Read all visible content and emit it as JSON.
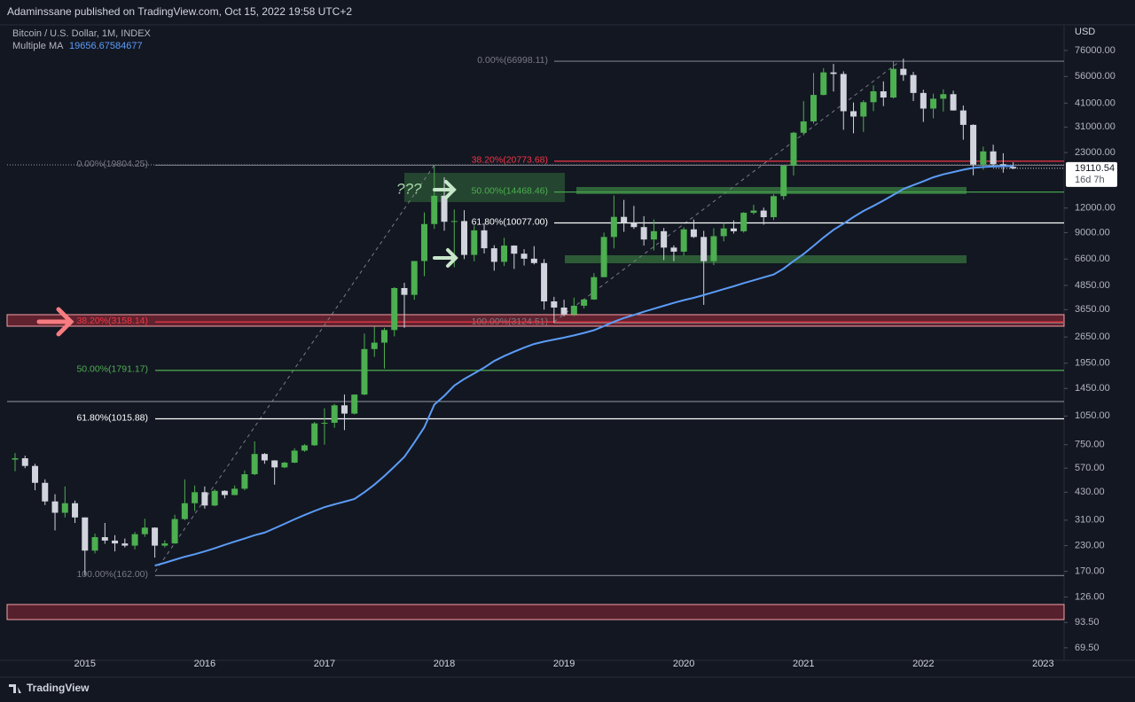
{
  "header": "Adaminssane published on TradingView.com, Oct 15, 2022 19:58 UTC+2",
  "footer": "TradingView",
  "chart_data": {
    "type": "candlestick",
    "title": "Bitcoin / U.S. Dollar, 1M, INDEX",
    "y_unit": "USD",
    "log_scale": true,
    "up_color": "#4caf50",
    "down_color": "#d1d4dc",
    "x": [
      "2014-06",
      "2014-07",
      "2014-08",
      "2014-09",
      "2014-10",
      "2014-11",
      "2014-12",
      "2015-01",
      "2015-02",
      "2015-03",
      "2015-04",
      "2015-05",
      "2015-06",
      "2015-07",
      "2015-08",
      "2015-09",
      "2015-10",
      "2015-11",
      "2015-12",
      "2016-01",
      "2016-02",
      "2016-03",
      "2016-04",
      "2016-05",
      "2016-06",
      "2016-07",
      "2016-08",
      "2016-09",
      "2016-10",
      "2016-11",
      "2016-12",
      "2017-01",
      "2017-02",
      "2017-03",
      "2017-04",
      "2017-05",
      "2017-06",
      "2017-07",
      "2017-08",
      "2017-09",
      "2017-10",
      "2017-11",
      "2017-12",
      "2018-01",
      "2018-02",
      "2018-03",
      "2018-04",
      "2018-05",
      "2018-06",
      "2018-07",
      "2018-08",
      "2018-09",
      "2018-10",
      "2018-11",
      "2018-12",
      "2019-01",
      "2019-02",
      "2019-03",
      "2019-04",
      "2019-05",
      "2019-06",
      "2019-07",
      "2019-08",
      "2019-09",
      "2019-10",
      "2019-11",
      "2019-12",
      "2020-01",
      "2020-02",
      "2020-03",
      "2020-04",
      "2020-05",
      "2020-06",
      "2020-07",
      "2020-08",
      "2020-09",
      "2020-10",
      "2020-11",
      "2020-12",
      "2021-01",
      "2021-02",
      "2021-03",
      "2021-04",
      "2021-05",
      "2021-06",
      "2021-07",
      "2021-08",
      "2021-09",
      "2021-10",
      "2021-11",
      "2021-12",
      "2022-01",
      "2022-02",
      "2022-03",
      "2022-04",
      "2022-05",
      "2022-06",
      "2022-07",
      "2022-08",
      "2022-09",
      "2022-10"
    ],
    "open": [
      630,
      640,
      585,
      480,
      386,
      338,
      378,
      320,
      217,
      254,
      244,
      236,
      230,
      263,
      284,
      230,
      236,
      314,
      378,
      430,
      368,
      437,
      416,
      448,
      531,
      673,
      624,
      575,
      608,
      700,
      745,
      963,
      970,
      1190,
      1080,
      1350,
      2300,
      2480,
      2875,
      4700,
      4340,
      6450,
      9950,
      13860,
      10220,
      10300,
      6930,
      9240,
      7490,
      6390,
      7730,
      7030,
      6630,
      6300,
      4020,
      3740,
      3460,
      3820,
      4110,
      5340,
      8550,
      10820,
      10080,
      9600,
      8300,
      9150,
      7550,
      7200,
      9350,
      8550,
      6440,
      8630,
      9450,
      9140,
      11350,
      11650,
      10780,
      13800,
      19700,
      28990,
      33110,
      45140,
      58800,
      57700,
      37300,
      35040,
      41460,
      47100,
      43800,
      61300,
      57000,
      46200,
      38480,
      43190,
      45540,
      37640,
      31790,
      19950,
      23300,
      20050,
      19430
    ],
    "high": [
      680,
      660,
      600,
      500,
      420,
      460,
      390,
      320,
      265,
      300,
      260,
      250,
      270,
      315,
      285,
      245,
      330,
      500,
      465,
      460,
      445,
      440,
      465,
      555,
      780,
      680,
      625,
      615,
      720,
      755,
      980,
      1150,
      1210,
      1350,
      1350,
      2760,
      3000,
      2950,
      4750,
      5000,
      6450,
      11400,
      19804.25,
      17200,
      11800,
      11700,
      9770,
      9990,
      7760,
      8470,
      7750,
      7410,
      7680,
      6600,
      4240,
      4100,
      4200,
      4150,
      5600,
      9000,
      13900,
      13200,
      12300,
      10900,
      10500,
      9500,
      7750,
      9580,
      10500,
      9190,
      9470,
      10070,
      10380,
      11440,
      12470,
      12070,
      14100,
      19900,
      29300,
      41950,
      58350,
      61800,
      64900,
      59500,
      41300,
      42400,
      50500,
      52900,
      66998.11,
      69000,
      59100,
      47990,
      45800,
      48190,
      47440,
      39900,
      31990,
      24650,
      25200,
      22800,
      20500
    ],
    "low": [
      550,
      570,
      440,
      370,
      275,
      320,
      300,
      162,
      210,
      235,
      215,
      225,
      220,
      255,
      200,
      225,
      235,
      310,
      345,
      355,
      365,
      400,
      415,
      440,
      525,
      600,
      470,
      570,
      605,
      690,
      740,
      750,
      915,
      890,
      1070,
      1340,
      2100,
      1830,
      2670,
      2950,
      4100,
      5400,
      9400,
      9200,
      6000,
      6600,
      6430,
      7050,
      5760,
      6080,
      5880,
      6120,
      6200,
      3650,
      3124.51,
      3380,
      3380,
      3700,
      4090,
      5340,
      7480,
      9080,
      9400,
      7730,
      7300,
      6520,
      6440,
      6870,
      8450,
      3860,
      6150,
      8120,
      8900,
      8990,
      11120,
      9880,
      10420,
      13220,
      17570,
      28130,
      32300,
      44960,
      47000,
      30000,
      28800,
      29280,
      37330,
      39600,
      43300,
      53250,
      42000,
      32900,
      34300,
      37150,
      37600,
      26700,
      17600,
      18780,
      19550,
      18150,
      18900
    ],
    "close": [
      640,
      585,
      480,
      386,
      338,
      378,
      320,
      217,
      254,
      244,
      236,
      230,
      263,
      284,
      230,
      236,
      314,
      378,
      430,
      368,
      437,
      416,
      448,
      531,
      673,
      624,
      575,
      608,
      700,
      745,
      963,
      970,
      1190,
      1080,
      1350,
      2300,
      2480,
      2875,
      4700,
      4340,
      6450,
      9950,
      13860,
      10220,
      10300,
      6930,
      9240,
      7490,
      6390,
      7730,
      7030,
      6630,
      6300,
      4020,
      3740,
      3460,
      3820,
      4110,
      5340,
      8550,
      10820,
      10080,
      9600,
      8300,
      9150,
      7550,
      7200,
      9350,
      8550,
      6440,
      8630,
      9450,
      9140,
      11350,
      11650,
      10780,
      13800,
      19700,
      28990,
      33110,
      45140,
      58800,
      57700,
      37300,
      35040,
      41460,
      47100,
      43800,
      61300,
      57000,
      46200,
      38480,
      43190,
      45540,
      37640,
      31790,
      19950,
      23300,
      20050,
      19430,
      19110.54
    ],
    "series": [
      {
        "name": "Multiple MA",
        "color": "#5b9cf6",
        "values": [
          null,
          null,
          null,
          null,
          null,
          null,
          null,
          null,
          null,
          null,
          null,
          null,
          null,
          null,
          182,
          188,
          195,
          202,
          208,
          215,
          223,
          232,
          241,
          250,
          260,
          268,
          282,
          297,
          313,
          329,
          345,
          361,
          373,
          385,
          397,
          430,
          470,
          520,
          580,
          650,
          770,
          920,
          1200,
          1330,
          1500,
          1620,
          1730,
          1850,
          2000,
          2120,
          2230,
          2340,
          2440,
          2510,
          2570,
          2630,
          2700,
          2780,
          2870,
          3010,
          3170,
          3310,
          3430,
          3560,
          3690,
          3820,
          3950,
          4080,
          4190,
          4330,
          4480,
          4640,
          4800,
          4980,
          5150,
          5330,
          5510,
          5900,
          6450,
          7000,
          7700,
          8500,
          9300,
          10000,
          10800,
          11600,
          12300,
          13100,
          14000,
          15000,
          15700,
          16400,
          17200,
          17800,
          18300,
          18800,
          19200,
          19400,
          19500,
          19600,
          19656.67584677
        ]
      }
    ],
    "countdown": "16d 7h",
    "annotations": [
      "???"
    ],
    "fib_retracements": [
      {
        "levels": [
          {
            "label": "0.00%(66998.11)",
            "value": 66998.11,
            "color": "#787b86"
          },
          {
            "label": "38.20%(20773.68)",
            "value": 20773.68,
            "color": "#f23645"
          },
          {
            "label": "50.00%(14468.46)",
            "value": 14468.46,
            "color": "#4caf50"
          },
          {
            "label": "61.80%(10077.00)",
            "value": 10077.0,
            "color": "#ffffff"
          },
          {
            "label": "100.00%(3124.51)",
            "value": 3124.51,
            "color": "#787b86"
          }
        ]
      },
      {
        "levels": [
          {
            "label": "0.00%(19804.25)",
            "value": 19804.25,
            "color": "#787b86"
          },
          {
            "label": "38.20%(3158.14)",
            "value": 3158.14,
            "color": "#f23645"
          },
          {
            "label": "50.00%(1791.17)",
            "value": 1791.17,
            "color": "#4caf50"
          },
          {
            "label": "61.80%(1015.88)",
            "value": 1015.88,
            "color": "#ffffff"
          },
          {
            "label": "100.00%(162.00)",
            "value": 162.0,
            "color": "#787b86"
          }
        ]
      }
    ],
    "xlim": [
      2014.35,
      2023.16
    ],
    "xticks": [
      2015,
      2016,
      2017,
      2018,
      2019,
      2020,
      2021,
      2022,
      2023
    ],
    "ylim": [
      60,
      100000
    ],
    "yticks": [
      {
        "value": 76000,
        "label": "76000.00"
      },
      {
        "value": 56000,
        "label": "56000.00"
      },
      {
        "value": 41000,
        "label": "41000.00"
      },
      {
        "value": 31000,
        "label": "31000.00"
      },
      {
        "value": 23000,
        "label": "23000.00"
      },
      {
        "value": 12000,
        "label": "12000.00"
      },
      {
        "value": 9000,
        "label": "9000.00"
      },
      {
        "value": 6600,
        "label": "6600.00"
      },
      {
        "value": 4850,
        "label": "4850.00"
      },
      {
        "value": 3650,
        "label": "3650.00"
      },
      {
        "value": 2650,
        "label": "2650.00"
      },
      {
        "value": 1950,
        "label": "1950.00"
      },
      {
        "value": 1450,
        "label": "1450.00"
      },
      {
        "value": 1050,
        "label": "1050.00"
      },
      {
        "value": 750,
        "label": "750.00"
      },
      {
        "value": 570,
        "label": "570.00"
      },
      {
        "value": 430,
        "label": "430.00"
      },
      {
        "value": 310,
        "label": "310.00"
      },
      {
        "value": 230,
        "label": "230.00"
      },
      {
        "value": 170,
        "label": "170.00"
      },
      {
        "value": 126,
        "label": "126.00"
      },
      {
        "value": 93.5,
        "label": "93.50"
      },
      {
        "value": 69.5,
        "label": "69.50"
      }
    ]
  }
}
